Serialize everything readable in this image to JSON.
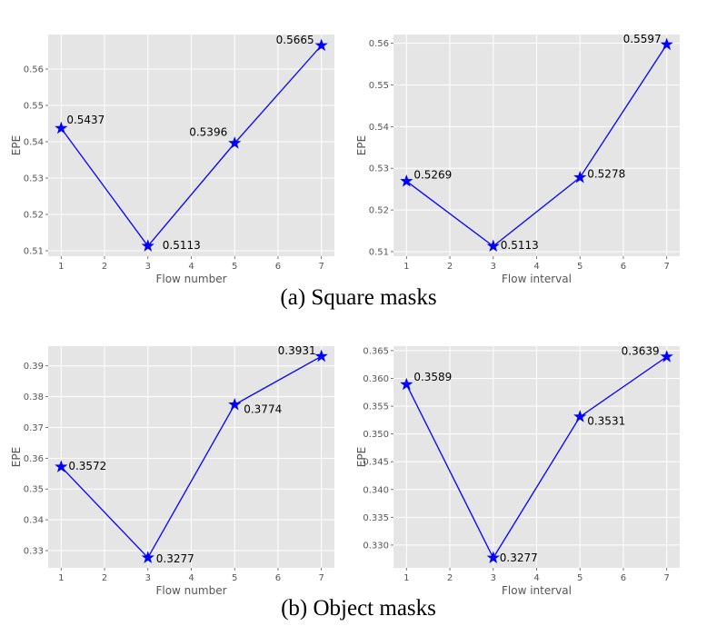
{
  "captions": {
    "a": "(a) Square masks",
    "b": "(b) Object masks"
  },
  "style": {
    "line_color": "#0000ff",
    "plot_bg": "#e5e5e5",
    "grid_color": "#ffffff",
    "label_color": "#555555"
  },
  "chart_data": [
    {
      "type": "line",
      "xlabel": "Flow number",
      "ylabel": "EPE",
      "x": [
        1,
        3,
        5,
        7
      ],
      "series": [
        {
          "values": [
            0.5437,
            0.5113,
            0.5396,
            0.5665
          ]
        }
      ],
      "data_labels": [
        "0.5437",
        "0.5113",
        "0.5396",
        "0.5665"
      ],
      "xticks": [
        1,
        2,
        3,
        4,
        5,
        6,
        7
      ],
      "yticks": [
        "0.51",
        "0.52",
        "0.53",
        "0.54",
        "0.55",
        "0.56"
      ],
      "xlim": [
        0.7,
        7.3
      ],
      "ylim": [
        0.5085,
        0.5695
      ],
      "grid": true,
      "marker": "star"
    },
    {
      "type": "line",
      "xlabel": "Flow interval",
      "ylabel": "EPE",
      "x": [
        1,
        3,
        5,
        7
      ],
      "series": [
        {
          "values": [
            0.5269,
            0.5113,
            0.5278,
            0.5597
          ]
        }
      ],
      "data_labels": [
        "0.5269",
        "0.5113",
        "0.5278",
        "0.5597"
      ],
      "xticks": [
        1,
        2,
        3,
        4,
        5,
        6,
        7
      ],
      "yticks": [
        "0.51",
        "0.52",
        "0.53",
        "0.54",
        "0.55",
        "0.56"
      ],
      "xlim": [
        0.7,
        7.3
      ],
      "ylim": [
        0.5089,
        0.5621
      ],
      "grid": true,
      "marker": "star"
    },
    {
      "type": "line",
      "xlabel": "Flow number",
      "ylabel": "EPE",
      "x": [
        1,
        3,
        5,
        7
      ],
      "series": [
        {
          "values": [
            0.3572,
            0.3277,
            0.3774,
            0.3931
          ]
        }
      ],
      "data_labels": [
        "0.3572",
        "0.3277",
        "0.3774",
        "0.3931"
      ],
      "xticks": [
        1,
        2,
        3,
        4,
        5,
        6,
        7
      ],
      "yticks": [
        "0.33",
        "0.34",
        "0.35",
        "0.36",
        "0.37",
        "0.38",
        "0.39"
      ],
      "xlim": [
        0.7,
        7.3
      ],
      "ylim": [
        0.3244,
        0.3964
      ],
      "grid": true,
      "marker": "star"
    },
    {
      "type": "line",
      "xlabel": "Flow interval",
      "ylabel": "EPE",
      "x": [
        1,
        3,
        5,
        7
      ],
      "series": [
        {
          "values": [
            0.3589,
            0.3277,
            0.3531,
            0.3639
          ]
        }
      ],
      "data_labels": [
        "0.3589",
        "0.3277",
        "0.3531",
        "0.3639"
      ],
      "xticks": [
        1,
        2,
        3,
        4,
        5,
        6,
        7
      ],
      "yticks": [
        "0.330",
        "0.335",
        "0.340",
        "0.345",
        "0.350",
        "0.355",
        "0.360",
        "0.365"
      ],
      "xlim": [
        0.7,
        7.3
      ],
      "ylim": [
        0.3259,
        0.3658
      ],
      "grid": true,
      "marker": "star"
    }
  ]
}
